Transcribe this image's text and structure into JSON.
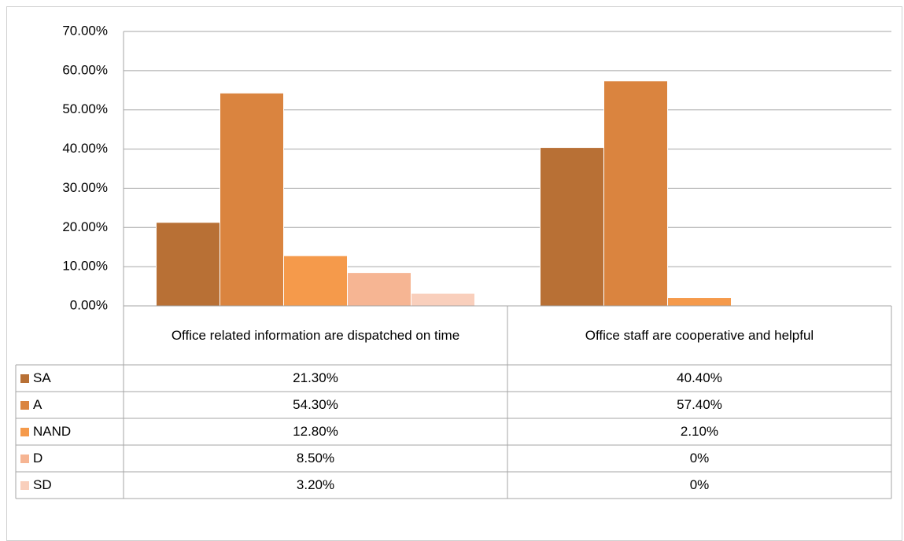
{
  "chart_data": {
    "type": "bar",
    "categories": [
      "Office related information are dispatched  on time",
      "Office staff are cooperative and helpful"
    ],
    "series": [
      {
        "name": "SA",
        "color": "#b87035",
        "values": [
          21.3,
          40.4
        ],
        "value_labels": [
          "21.30%",
          "40.40%"
        ]
      },
      {
        "name": "A",
        "color": "#da843f",
        "values": [
          54.3,
          57.4
        ],
        "value_labels": [
          "54.30%",
          "57.40%"
        ]
      },
      {
        "name": "NAND",
        "color": "#f59a4b",
        "values": [
          12.8,
          2.1
        ],
        "value_labels": [
          "12.80%",
          "2.10%"
        ]
      },
      {
        "name": "D",
        "color": "#f6b593",
        "values": [
          8.5,
          0
        ],
        "value_labels": [
          "8.50%",
          "0%"
        ]
      },
      {
        "name": "SD",
        "color": "#f9cfbc",
        "values": [
          3.2,
          0
        ],
        "value_labels": [
          "3.20%",
          "0%"
        ]
      }
    ],
    "ylim": [
      0,
      70
    ],
    "yticks": [
      {
        "value": 0,
        "label": "0.00%"
      },
      {
        "value": 10,
        "label": "10.00%"
      },
      {
        "value": 20,
        "label": "20.00%"
      },
      {
        "value": 30,
        "label": "30.00%"
      },
      {
        "value": 40,
        "label": "40.00%"
      },
      {
        "value": 50,
        "label": "50.00%"
      },
      {
        "value": 60,
        "label": "60.00%"
      },
      {
        "value": 70,
        "label": "70.00%"
      }
    ],
    "grid": true
  }
}
